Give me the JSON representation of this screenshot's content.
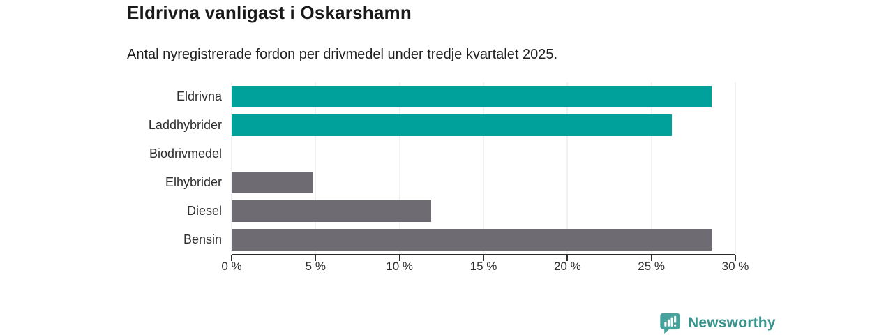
{
  "chart_data": {
    "type": "bar",
    "orientation": "horizontal",
    "title": "Eldrivna vanligast i Oskarshamn",
    "subtitle": "Antal nyregistrerade fordon per drivmedel under tredje kvartalet 2025.",
    "categories": [
      "Eldrivna",
      "Laddhybrider",
      "Biodrivmedel",
      "Elhybrider",
      "Diesel",
      "Bensin"
    ],
    "values": [
      28.6,
      26.2,
      0,
      4.8,
      11.9,
      28.6
    ],
    "unit": "%",
    "xlabel": "",
    "ylabel": "",
    "xlim": [
      0,
      30
    ],
    "xticks": [
      0,
      5,
      10,
      15,
      20,
      25,
      30
    ],
    "xtick_labels": [
      "0 %",
      "5 %",
      "10 %",
      "15 %",
      "20 %",
      "25 %",
      "30 %"
    ],
    "grid": true,
    "legend": false,
    "bar_colors": [
      "#00a19a",
      "#00a19a",
      "#6e6b73",
      "#6e6b73",
      "#6e6b73",
      "#6e6b73"
    ]
  },
  "colors": {
    "accent_teal": "#00a19a",
    "bar_gray": "#6e6b73",
    "gridline": "#e3e3e3",
    "axis": "#2d2d2d",
    "logo_teal": "#3a948e",
    "logo_icon_teal": "#46a39b"
  },
  "footer": {
    "logo_text": "Newsworthy"
  }
}
